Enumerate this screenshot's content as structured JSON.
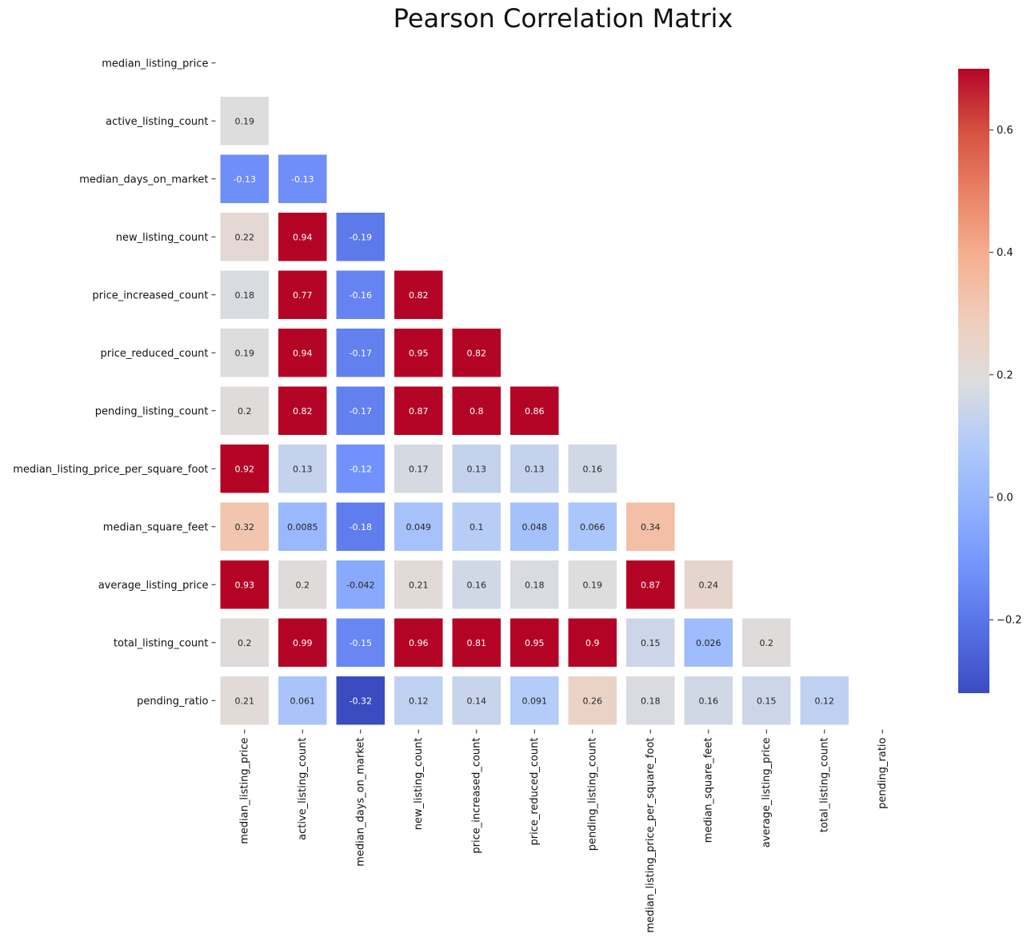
{
  "chart_data": {
    "type": "heatmap",
    "title": "Pearson Correlation Matrix",
    "variables": [
      "median_listing_price",
      "active_listing_count",
      "median_days_on_market",
      "new_listing_count",
      "price_increased_count",
      "price_reduced_count",
      "pending_listing_count",
      "median_listing_price_per_square_foot",
      "median_square_feet",
      "average_listing_price",
      "total_listing_count",
      "pending_ratio"
    ],
    "mask": "upper-triangle-including-diagonal",
    "cells": [
      {
        "row": 1,
        "col": 0,
        "value": 0.19,
        "label": "0.19"
      },
      {
        "row": 2,
        "col": 0,
        "value": -0.13,
        "label": "-0.13"
      },
      {
        "row": 2,
        "col": 1,
        "value": -0.13,
        "label": "-0.13"
      },
      {
        "row": 3,
        "col": 0,
        "value": 0.22,
        "label": "0.22"
      },
      {
        "row": 3,
        "col": 1,
        "value": 0.94,
        "label": "0.94"
      },
      {
        "row": 3,
        "col": 2,
        "value": -0.19,
        "label": "-0.19"
      },
      {
        "row": 4,
        "col": 0,
        "value": 0.18,
        "label": "0.18"
      },
      {
        "row": 4,
        "col": 1,
        "value": 0.77,
        "label": "0.77"
      },
      {
        "row": 4,
        "col": 2,
        "value": -0.16,
        "label": "-0.16"
      },
      {
        "row": 4,
        "col": 3,
        "value": 0.82,
        "label": "0.82"
      },
      {
        "row": 5,
        "col": 0,
        "value": 0.19,
        "label": "0.19"
      },
      {
        "row": 5,
        "col": 1,
        "value": 0.94,
        "label": "0.94"
      },
      {
        "row": 5,
        "col": 2,
        "value": -0.17,
        "label": "-0.17"
      },
      {
        "row": 5,
        "col": 3,
        "value": 0.95,
        "label": "0.95"
      },
      {
        "row": 5,
        "col": 4,
        "value": 0.82,
        "label": "0.82"
      },
      {
        "row": 6,
        "col": 0,
        "value": 0.2,
        "label": "0.2"
      },
      {
        "row": 6,
        "col": 1,
        "value": 0.82,
        "label": "0.82"
      },
      {
        "row": 6,
        "col": 2,
        "value": -0.17,
        "label": "-0.17"
      },
      {
        "row": 6,
        "col": 3,
        "value": 0.87,
        "label": "0.87"
      },
      {
        "row": 6,
        "col": 4,
        "value": 0.8,
        "label": "0.8"
      },
      {
        "row": 6,
        "col": 5,
        "value": 0.86,
        "label": "0.86"
      },
      {
        "row": 7,
        "col": 0,
        "value": 0.92,
        "label": "0.92"
      },
      {
        "row": 7,
        "col": 1,
        "value": 0.13,
        "label": "0.13"
      },
      {
        "row": 7,
        "col": 2,
        "value": -0.12,
        "label": "-0.12"
      },
      {
        "row": 7,
        "col": 3,
        "value": 0.17,
        "label": "0.17"
      },
      {
        "row": 7,
        "col": 4,
        "value": 0.13,
        "label": "0.13"
      },
      {
        "row": 7,
        "col": 5,
        "value": 0.13,
        "label": "0.13"
      },
      {
        "row": 7,
        "col": 6,
        "value": 0.16,
        "label": "0.16"
      },
      {
        "row": 8,
        "col": 0,
        "value": 0.32,
        "label": "0.32"
      },
      {
        "row": 8,
        "col": 1,
        "value": 0.0085,
        "label": "0.0085"
      },
      {
        "row": 8,
        "col": 2,
        "value": -0.18,
        "label": "-0.18"
      },
      {
        "row": 8,
        "col": 3,
        "value": 0.049,
        "label": "0.049"
      },
      {
        "row": 8,
        "col": 4,
        "value": 0.1,
        "label": "0.1"
      },
      {
        "row": 8,
        "col": 5,
        "value": 0.048,
        "label": "0.048"
      },
      {
        "row": 8,
        "col": 6,
        "value": 0.066,
        "label": "0.066"
      },
      {
        "row": 8,
        "col": 7,
        "value": 0.34,
        "label": "0.34"
      },
      {
        "row": 9,
        "col": 0,
        "value": 0.93,
        "label": "0.93"
      },
      {
        "row": 9,
        "col": 1,
        "value": 0.2,
        "label": "0.2"
      },
      {
        "row": 9,
        "col": 2,
        "value": -0.042,
        "label": "-0.042"
      },
      {
        "row": 9,
        "col": 3,
        "value": 0.21,
        "label": "0.21"
      },
      {
        "row": 9,
        "col": 4,
        "value": 0.16,
        "label": "0.16"
      },
      {
        "row": 9,
        "col": 5,
        "value": 0.18,
        "label": "0.18"
      },
      {
        "row": 9,
        "col": 6,
        "value": 0.19,
        "label": "0.19"
      },
      {
        "row": 9,
        "col": 7,
        "value": 0.87,
        "label": "0.87"
      },
      {
        "row": 9,
        "col": 8,
        "value": 0.24,
        "label": "0.24"
      },
      {
        "row": 10,
        "col": 0,
        "value": 0.2,
        "label": "0.2"
      },
      {
        "row": 10,
        "col": 1,
        "value": 0.99,
        "label": "0.99"
      },
      {
        "row": 10,
        "col": 2,
        "value": -0.15,
        "label": "-0.15"
      },
      {
        "row": 10,
        "col": 3,
        "value": 0.96,
        "label": "0.96"
      },
      {
        "row": 10,
        "col": 4,
        "value": 0.81,
        "label": "0.81"
      },
      {
        "row": 10,
        "col": 5,
        "value": 0.95,
        "label": "0.95"
      },
      {
        "row": 10,
        "col": 6,
        "value": 0.9,
        "label": "0.9"
      },
      {
        "row": 10,
        "col": 7,
        "value": 0.15,
        "label": "0.15"
      },
      {
        "row": 10,
        "col": 8,
        "value": 0.026,
        "label": "0.026"
      },
      {
        "row": 10,
        "col": 9,
        "value": 0.2,
        "label": "0.2"
      },
      {
        "row": 11,
        "col": 0,
        "value": 0.21,
        "label": "0.21"
      },
      {
        "row": 11,
        "col": 1,
        "value": 0.061,
        "label": "0.061"
      },
      {
        "row": 11,
        "col": 2,
        "value": -0.32,
        "label": "-0.32"
      },
      {
        "row": 11,
        "col": 3,
        "value": 0.12,
        "label": "0.12"
      },
      {
        "row": 11,
        "col": 4,
        "value": 0.14,
        "label": "0.14"
      },
      {
        "row": 11,
        "col": 5,
        "value": 0.091,
        "label": "0.091"
      },
      {
        "row": 11,
        "col": 6,
        "value": 0.26,
        "label": "0.26"
      },
      {
        "row": 11,
        "col": 7,
        "value": 0.18,
        "label": "0.18"
      },
      {
        "row": 11,
        "col": 8,
        "value": 0.16,
        "label": "0.16"
      },
      {
        "row": 11,
        "col": 9,
        "value": 0.15,
        "label": "0.15"
      },
      {
        "row": 11,
        "col": 10,
        "value": 0.12,
        "label": "0.12"
      }
    ],
    "colormap": "coolwarm",
    "vmin": -0.32,
    "vmax": 0.7,
    "colorbar": {
      "ticks": [
        -0.2,
        0.0,
        0.2,
        0.4,
        0.6
      ],
      "tick_labels": [
        "−0.2",
        "0.0",
        "0.2",
        "0.4",
        "0.6"
      ],
      "placement": "right"
    },
    "grid": false,
    "xlabel": "",
    "ylabel": ""
  }
}
